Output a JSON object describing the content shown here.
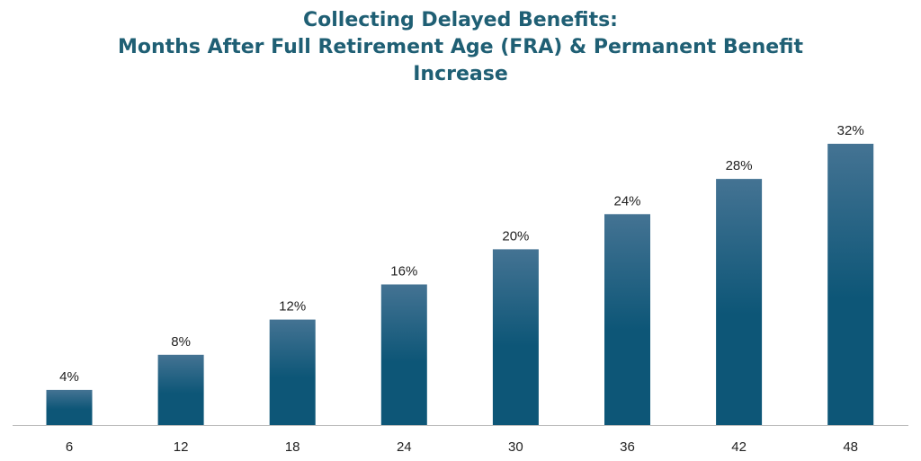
{
  "chart_data": {
    "type": "bar",
    "title_lines": [
      "Collecting Delayed Benefits:",
      "Months After Full Retirement Age (FRA) & Permanent Benefit",
      "Increase"
    ],
    "xlabel": "",
    "ylabel": "",
    "categories": [
      "6",
      "12",
      "18",
      "24",
      "30",
      "36",
      "42",
      "48"
    ],
    "values": [
      4,
      8,
      12,
      16,
      20,
      24,
      28,
      32
    ],
    "value_labels": [
      "4%",
      "8%",
      "12%",
      "16%",
      "20%",
      "24%",
      "28%",
      "32%"
    ],
    "ylim": [
      0,
      32
    ],
    "grid": false,
    "legend": "none",
    "bar_color_top": "#447393",
    "bar_color_bottom": "#0d5677",
    "axis_color": "#bdbdbd"
  }
}
